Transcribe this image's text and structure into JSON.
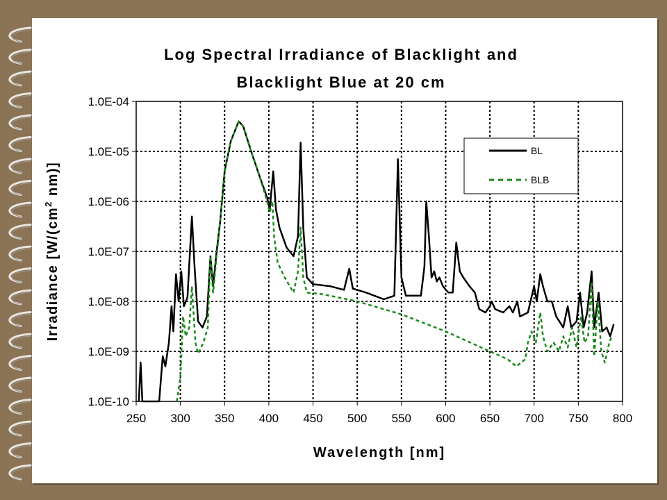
{
  "chart_data": {
    "type": "line",
    "title_line1": "Log Spectral Irradiance of Blacklight and",
    "title_line2": "Blacklight Blue at 20 cm",
    "xlabel": "Wavelength [nm]",
    "ylabel_prefix": "Irradiance [W/(cm",
    "ylabel_sup": "2",
    "ylabel_suffix": " nm)]",
    "x_ticks": [
      "250",
      "300",
      "350",
      "400",
      "450",
      "500",
      "550",
      "600",
      "650",
      "700",
      "750",
      "800"
    ],
    "y_ticks": [
      "1.0E-10",
      "1.0E-09",
      "1.0E-08",
      "1.0E-07",
      "1.0E-06",
      "1.0E-05",
      "1.0E-04"
    ],
    "xlim": [
      250,
      800
    ],
    "ylim": [
      1e-10,
      0.0001
    ],
    "yscale": "log",
    "grid": true,
    "legend_position": "top-right",
    "series": [
      {
        "name": "BL",
        "color": "#000000",
        "style": "solid",
        "points": [
          [
            253,
            1e-10
          ],
          [
            255,
            6e-10
          ],
          [
            257,
            1e-10
          ],
          [
            276,
            1e-10
          ],
          [
            280,
            8e-10
          ],
          [
            283,
            5e-10
          ],
          [
            287,
            1.5e-09
          ],
          [
            290,
            8e-09
          ],
          [
            292,
            2.5e-09
          ],
          [
            295,
            3.5e-08
          ],
          [
            298,
            1e-08
          ],
          [
            301,
            4e-08
          ],
          [
            304,
            8e-09
          ],
          [
            308,
            1.2e-08
          ],
          [
            313,
            5e-07
          ],
          [
            316,
            5e-08
          ],
          [
            320,
            4e-09
          ],
          [
            325,
            3e-09
          ],
          [
            330,
            5e-09
          ],
          [
            334,
            8e-08
          ],
          [
            337,
            2e-08
          ],
          [
            341,
            1e-07
          ],
          [
            345,
            4e-07
          ],
          [
            350,
            4e-06
          ],
          [
            357,
            1.6e-05
          ],
          [
            366,
            4e-05
          ],
          [
            371,
            3.2e-05
          ],
          [
            380,
            1e-05
          ],
          [
            390,
            3e-06
          ],
          [
            398,
            1.2e-06
          ],
          [
            401,
            7e-07
          ],
          [
            405,
            4e-06
          ],
          [
            408,
            7e-07
          ],
          [
            412,
            3e-07
          ],
          [
            420,
            1.2e-07
          ],
          [
            428,
            8e-08
          ],
          [
            433,
            2e-07
          ],
          [
            436,
            1.5e-05
          ],
          [
            439,
            3e-07
          ],
          [
            443,
            3e-08
          ],
          [
            450,
            2.2e-08
          ],
          [
            470,
            2e-08
          ],
          [
            485,
            1.7e-08
          ],
          [
            491,
            4.5e-08
          ],
          [
            495,
            1.8e-08
          ],
          [
            510,
            1.5e-08
          ],
          [
            530,
            1.1e-08
          ],
          [
            542,
            1.3e-08
          ],
          [
            546,
            7e-06
          ],
          [
            550,
            3e-08
          ],
          [
            555,
            1.3e-08
          ],
          [
            572,
            1.3e-08
          ],
          [
            576,
            5e-08
          ],
          [
            578,
            1e-06
          ],
          [
            581,
            2e-07
          ],
          [
            584,
            3e-08
          ],
          [
            587,
            4e-08
          ],
          [
            590,
            2.5e-08
          ],
          [
            593,
            3e-08
          ],
          [
            597,
            2e-08
          ],
          [
            603,
            1.5e-08
          ],
          [
            608,
            1.5e-08
          ],
          [
            612,
            1.5e-07
          ],
          [
            616,
            4e-08
          ],
          [
            620,
            3e-08
          ],
          [
            627,
            2e-08
          ],
          [
            633,
            1.5e-08
          ],
          [
            638,
            7e-09
          ],
          [
            645,
            6e-09
          ],
          [
            650,
            8e-09
          ],
          [
            652,
            1e-08
          ],
          [
            656,
            7e-09
          ],
          [
            665,
            6e-09
          ],
          [
            672,
            8e-09
          ],
          [
            676,
            6e-09
          ],
          [
            681,
            1e-08
          ],
          [
            684,
            5e-09
          ],
          [
            693,
            6e-09
          ],
          [
            697,
            1.2e-08
          ],
          [
            700,
            2e-08
          ],
          [
            703,
            1e-08
          ],
          [
            707,
            3.5e-08
          ],
          [
            710,
            2e-08
          ],
          [
            715,
            1e-08
          ],
          [
            720,
            1e-08
          ],
          [
            725,
            5e-09
          ],
          [
            733,
            3e-09
          ],
          [
            738,
            8e-09
          ],
          [
            742,
            3e-09
          ],
          [
            748,
            4e-09
          ],
          [
            752,
            1.5e-08
          ],
          [
            756,
            3e-09
          ],
          [
            760,
            6e-09
          ],
          [
            765,
            4e-08
          ],
          [
            768,
            3e-09
          ],
          [
            773,
            1.5e-08
          ],
          [
            777,
            2.5e-09
          ],
          [
            782,
            3e-09
          ],
          [
            786,
            2e-09
          ],
          [
            790,
            3.5e-09
          ]
        ]
      },
      {
        "name": "BLB",
        "color": "#1a8a1a",
        "style": "dashed",
        "points": [
          [
            296,
            1e-10
          ],
          [
            300,
            3e-10
          ],
          [
            303,
            5e-09
          ],
          [
            306,
            2e-09
          ],
          [
            310,
            3e-09
          ],
          [
            313,
            2e-08
          ],
          [
            317,
            1.5e-09
          ],
          [
            320,
            9e-10
          ],
          [
            326,
            1.5e-09
          ],
          [
            331,
            3e-09
          ],
          [
            334,
            8e-08
          ],
          [
            337,
            1.5e-08
          ],
          [
            341,
            8e-08
          ],
          [
            345,
            4e-07
          ],
          [
            350,
            4e-06
          ],
          [
            357,
            1.6e-05
          ],
          [
            366,
            4e-05
          ],
          [
            371,
            3.2e-05
          ],
          [
            380,
            1e-05
          ],
          [
            390,
            3e-06
          ],
          [
            398,
            1e-06
          ],
          [
            401,
            6e-07
          ],
          [
            404,
            1e-06
          ],
          [
            406,
            2e-07
          ],
          [
            410,
            6e-08
          ],
          [
            418,
            3e-08
          ],
          [
            428,
            1.5e-08
          ],
          [
            433,
            4e-08
          ],
          [
            436,
            3e-07
          ],
          [
            439,
            3e-08
          ],
          [
            443,
            1.5e-08
          ],
          [
            460,
            1.4e-08
          ],
          [
            500,
            1e-08
          ],
          [
            550,
            5.5e-09
          ],
          [
            600,
            2.5e-09
          ],
          [
            650,
            1e-09
          ],
          [
            670,
            7e-10
          ],
          [
            680,
            5e-10
          ],
          [
            690,
            7e-10
          ],
          [
            693,
            1.5e-09
          ],
          [
            697,
            2.5e-09
          ],
          [
            702,
            1.5e-09
          ],
          [
            707,
            6e-09
          ],
          [
            710,
            2e-09
          ],
          [
            715,
            1e-09
          ],
          [
            722,
            1.5e-09
          ],
          [
            728,
            1e-09
          ],
          [
            733,
            2e-09
          ],
          [
            738,
            1.2e-09
          ],
          [
            743,
            3e-09
          ],
          [
            748,
            1.2e-09
          ],
          [
            753,
            5e-09
          ],
          [
            757,
            1.5e-09
          ],
          [
            761,
            2e-09
          ],
          [
            765,
            2.5e-08
          ],
          [
            768,
            8e-10
          ],
          [
            772,
            1e-08
          ],
          [
            776,
            1e-09
          ],
          [
            780,
            6e-10
          ],
          [
            785,
            1.5e-09
          ],
          [
            788,
            2e-09
          ]
        ]
      }
    ]
  }
}
